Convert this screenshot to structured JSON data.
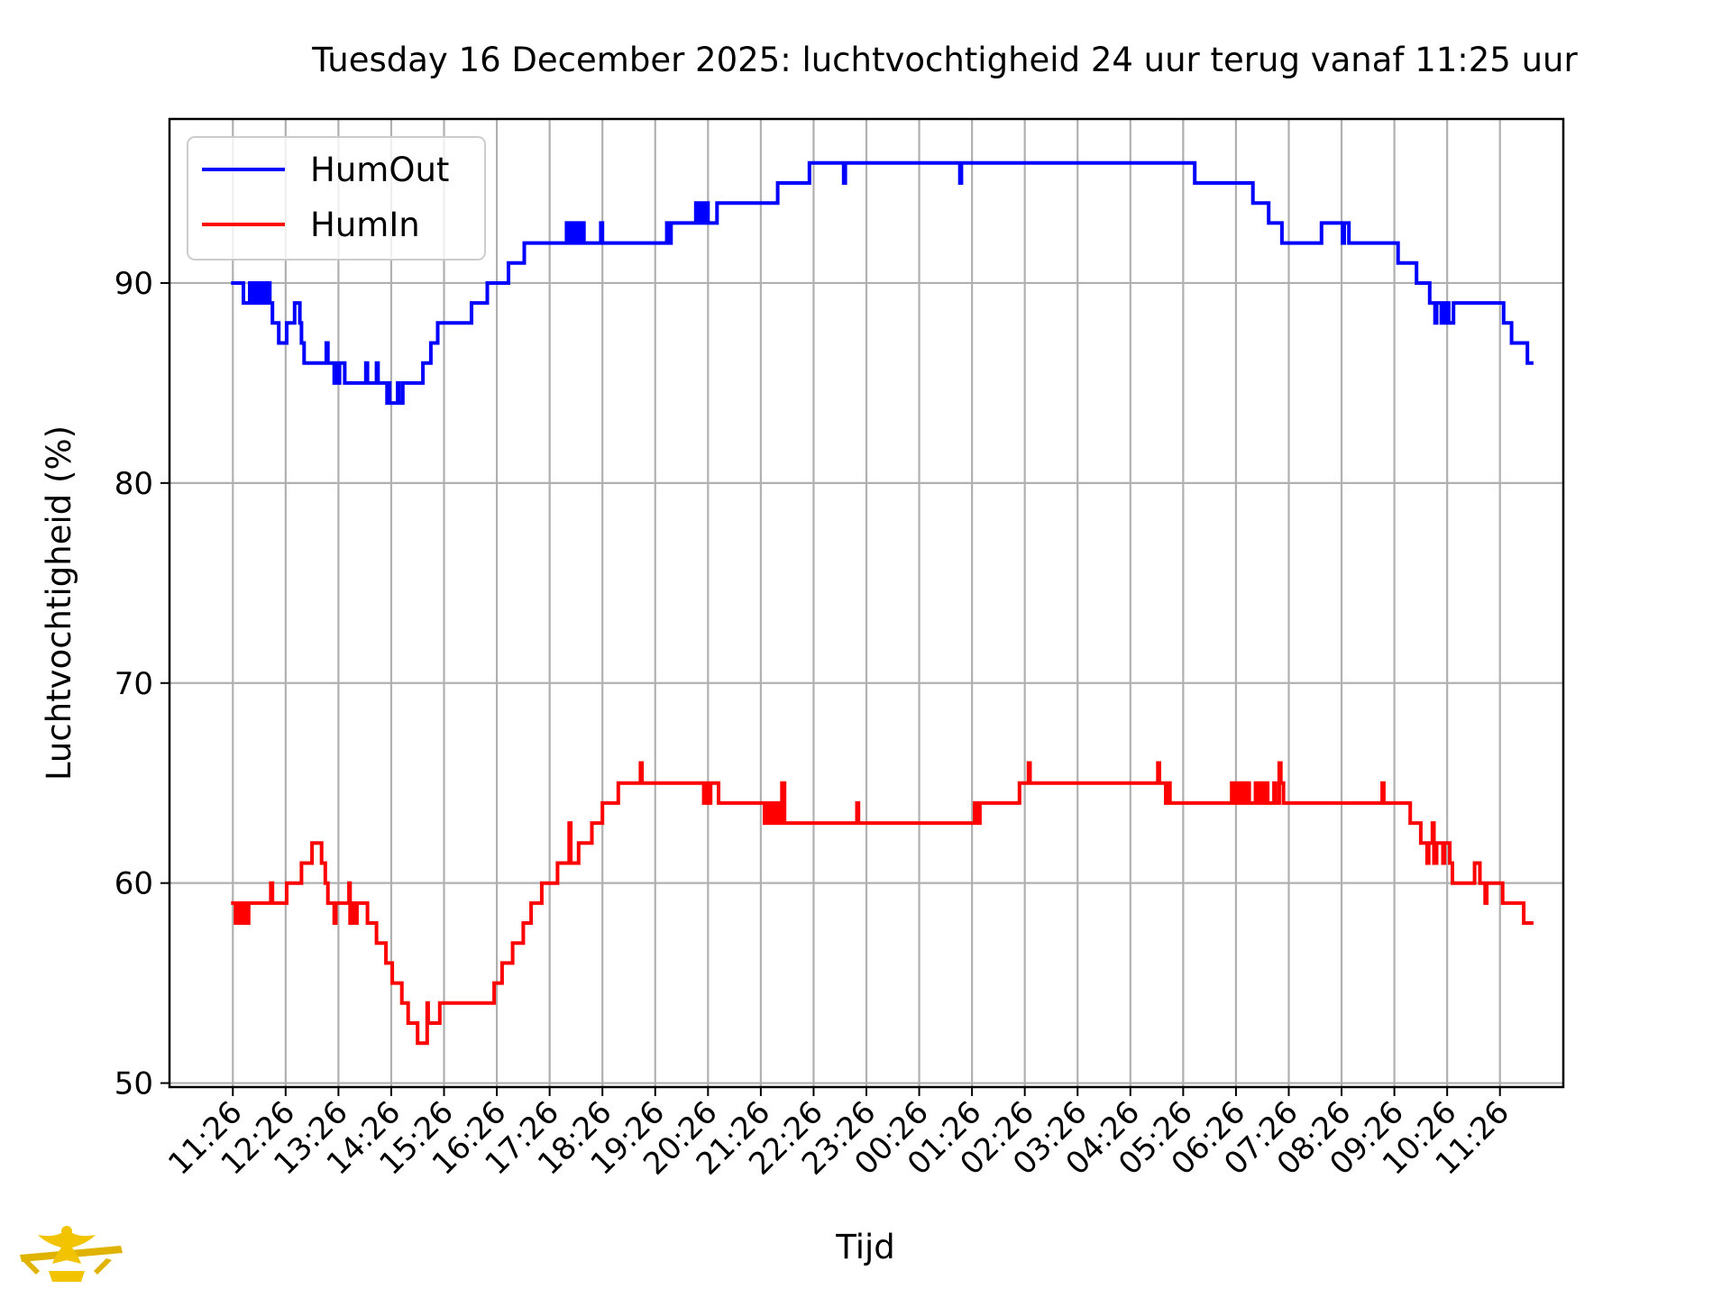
{
  "chart_data": {
    "type": "line",
    "title": "Tuesday 16 December 2025: luchtvochtigheid 24 uur terug vanaf 11:25 uur",
    "xlabel": "Tijd",
    "ylabel": "Luchtvochtigheid (%)",
    "ylim": [
      49.8,
      98.2
    ],
    "yticks": [
      50,
      60,
      70,
      80,
      90
    ],
    "xlim": [
      -1.2,
      25.2
    ],
    "xticks": [
      "11:26",
      "12:26",
      "13:26",
      "14:26",
      "15:26",
      "16:26",
      "17:26",
      "18:26",
      "19:26",
      "20:26",
      "21:26",
      "22:26",
      "23:26",
      "00:26",
      "01:26",
      "02:26",
      "03:26",
      "04:26",
      "05:26",
      "06:26",
      "07:26",
      "08:26",
      "09:26",
      "10:26",
      "11:26"
    ],
    "grid": true,
    "legend_position": "top-left",
    "series": [
      {
        "name": "HumOut",
        "color": "#0000ff",
        "points": [
          [
            0,
            90
          ],
          [
            0.15,
            90
          ],
          [
            0.2,
            89
          ],
          [
            0.3,
            89
          ],
          [
            0.32,
            90
          ],
          [
            0.36,
            89
          ],
          [
            0.4,
            89
          ],
          [
            0.42,
            90
          ],
          [
            0.46,
            89
          ],
          [
            0.5,
            89
          ],
          [
            0.52,
            90
          ],
          [
            0.56,
            89
          ],
          [
            0.58,
            90
          ],
          [
            0.62,
            89
          ],
          [
            0.66,
            90
          ],
          [
            0.7,
            89
          ],
          [
            0.75,
            88
          ],
          [
            0.85,
            88
          ],
          [
            0.87,
            87
          ],
          [
            1.0,
            87
          ],
          [
            1.02,
            88
          ],
          [
            1.15,
            88
          ],
          [
            1.17,
            89
          ],
          [
            1.25,
            89
          ],
          [
            1.27,
            88
          ],
          [
            1.3,
            87
          ],
          [
            1.35,
            86
          ],
          [
            1.75,
            86
          ],
          [
            1.77,
            87
          ],
          [
            1.8,
            86
          ],
          [
            1.9,
            86
          ],
          [
            1.92,
            85
          ],
          [
            1.95,
            86
          ],
          [
            1.97,
            85
          ],
          [
            2.0,
            85
          ],
          [
            2.02,
            86
          ],
          [
            2.1,
            86
          ],
          [
            2.12,
            85
          ],
          [
            2.5,
            85
          ],
          [
            2.52,
            86
          ],
          [
            2.55,
            85
          ],
          [
            2.7,
            85
          ],
          [
            2.72,
            86
          ],
          [
            2.75,
            85
          ],
          [
            2.9,
            85
          ],
          [
            2.92,
            84
          ],
          [
            2.95,
            85
          ],
          [
            2.97,
            84
          ],
          [
            3.1,
            84
          ],
          [
            3.12,
            85
          ],
          [
            3.15,
            84
          ],
          [
            3.2,
            84
          ],
          [
            3.22,
            85
          ],
          [
            3.55,
            85
          ],
          [
            3.6,
            86
          ],
          [
            3.7,
            86
          ],
          [
            3.75,
            87
          ],
          [
            3.85,
            87
          ],
          [
            3.88,
            88
          ],
          [
            4.5,
            88
          ],
          [
            4.52,
            89
          ],
          [
            4.8,
            89
          ],
          [
            4.82,
            90
          ],
          [
            5.2,
            90
          ],
          [
            5.22,
            91
          ],
          [
            5.5,
            91
          ],
          [
            5.52,
            92
          ],
          [
            6.3,
            92
          ],
          [
            6.32,
            93
          ],
          [
            6.35,
            92
          ],
          [
            6.4,
            93
          ],
          [
            6.45,
            92
          ],
          [
            6.5,
            93
          ],
          [
            6.55,
            92
          ],
          [
            6.6,
            93
          ],
          [
            6.65,
            92
          ],
          [
            6.95,
            92
          ],
          [
            6.97,
            93
          ],
          [
            7.0,
            92
          ],
          [
            8.2,
            92
          ],
          [
            8.22,
            93
          ],
          [
            8.25,
            92
          ],
          [
            8.3,
            93
          ],
          [
            8.75,
            93
          ],
          [
            8.77,
            94
          ],
          [
            8.8,
            93
          ],
          [
            8.85,
            94
          ],
          [
            8.9,
            93
          ],
          [
            8.95,
            94
          ],
          [
            9.0,
            93
          ],
          [
            9.15,
            93
          ],
          [
            9.17,
            94
          ],
          [
            10.3,
            94
          ],
          [
            10.32,
            95
          ],
          [
            10.9,
            95
          ],
          [
            10.92,
            96
          ],
          [
            11.55,
            96
          ],
          [
            11.57,
            95
          ],
          [
            11.6,
            96
          ],
          [
            13.75,
            96
          ],
          [
            13.77,
            95
          ],
          [
            13.8,
            96
          ],
          [
            18.2,
            96
          ],
          [
            18.22,
            95
          ],
          [
            19.3,
            95
          ],
          [
            19.32,
            94
          ],
          [
            19.6,
            94
          ],
          [
            19.62,
            93
          ],
          [
            19.85,
            93
          ],
          [
            19.87,
            92
          ],
          [
            20.6,
            92
          ],
          [
            20.62,
            93
          ],
          [
            21.0,
            93
          ],
          [
            21.02,
            92
          ],
          [
            21.05,
            93
          ],
          [
            21.12,
            93
          ],
          [
            21.14,
            92
          ],
          [
            21.25,
            92
          ],
          [
            22.05,
            92
          ],
          [
            22.07,
            91
          ],
          [
            22.4,
            91
          ],
          [
            22.42,
            90
          ],
          [
            22.65,
            90
          ],
          [
            22.67,
            89
          ],
          [
            22.75,
            89
          ],
          [
            22.77,
            88
          ],
          [
            22.8,
            89
          ],
          [
            22.87,
            89
          ],
          [
            22.89,
            88
          ],
          [
            22.92,
            89
          ],
          [
            22.97,
            88
          ],
          [
            23.0,
            89
          ],
          [
            23.03,
            88
          ],
          [
            23.1,
            88
          ],
          [
            23.12,
            89
          ],
          [
            23.45,
            89
          ],
          [
            23.5,
            89
          ],
          [
            24.05,
            89
          ],
          [
            24.07,
            88
          ],
          [
            24.2,
            88
          ],
          [
            24.22,
            87
          ],
          [
            24.5,
            87
          ],
          [
            24.52,
            86
          ],
          [
            24.6,
            86
          ]
        ]
      },
      {
        "name": "HumIn",
        "color": "#ff0000",
        "points": [
          [
            0,
            59
          ],
          [
            0.05,
            58
          ],
          [
            0.1,
            59
          ],
          [
            0.15,
            58
          ],
          [
            0.2,
            59
          ],
          [
            0.25,
            58
          ],
          [
            0.3,
            59
          ],
          [
            0.7,
            59
          ],
          [
            0.72,
            60
          ],
          [
            0.75,
            59
          ],
          [
            1.0,
            59
          ],
          [
            1.02,
            60
          ],
          [
            1.25,
            60
          ],
          [
            1.3,
            61
          ],
          [
            1.45,
            61
          ],
          [
            1.5,
            62
          ],
          [
            1.65,
            62
          ],
          [
            1.68,
            61
          ],
          [
            1.75,
            60
          ],
          [
            1.8,
            59
          ],
          [
            1.9,
            59
          ],
          [
            1.92,
            58
          ],
          [
            1.95,
            59
          ],
          [
            2.15,
            59
          ],
          [
            2.2,
            60
          ],
          [
            2.22,
            58
          ],
          [
            2.26,
            59
          ],
          [
            2.3,
            58
          ],
          [
            2.35,
            59
          ],
          [
            2.5,
            59
          ],
          [
            2.55,
            58
          ],
          [
            2.7,
            58
          ],
          [
            2.72,
            57
          ],
          [
            2.85,
            57
          ],
          [
            2.9,
            56
          ],
          [
            3.0,
            56
          ],
          [
            3.02,
            55
          ],
          [
            3.15,
            55
          ],
          [
            3.2,
            54
          ],
          [
            3.3,
            54
          ],
          [
            3.32,
            53
          ],
          [
            3.45,
            53
          ],
          [
            3.5,
            52
          ],
          [
            3.65,
            52
          ],
          [
            3.68,
            54
          ],
          [
            3.7,
            53
          ],
          [
            3.9,
            53
          ],
          [
            3.92,
            54
          ],
          [
            4.1,
            54
          ],
          [
            4.15,
            54
          ],
          [
            4.9,
            54
          ],
          [
            4.95,
            55
          ],
          [
            5.05,
            55
          ],
          [
            5.1,
            56
          ],
          [
            5.25,
            56
          ],
          [
            5.3,
            57
          ],
          [
            5.45,
            57
          ],
          [
            5.5,
            58
          ],
          [
            5.6,
            58
          ],
          [
            5.65,
            59
          ],
          [
            5.8,
            59
          ],
          [
            5.85,
            60
          ],
          [
            6.1,
            60
          ],
          [
            6.15,
            61
          ],
          [
            6.35,
            61
          ],
          [
            6.37,
            63
          ],
          [
            6.4,
            61
          ],
          [
            6.5,
            61
          ],
          [
            6.55,
            62
          ],
          [
            6.75,
            62
          ],
          [
            6.8,
            63
          ],
          [
            6.95,
            63
          ],
          [
            7.0,
            64
          ],
          [
            7.25,
            64
          ],
          [
            7.3,
            65
          ],
          [
            7.7,
            65
          ],
          [
            7.72,
            66
          ],
          [
            7.75,
            65
          ],
          [
            8.9,
            65
          ],
          [
            8.92,
            64
          ],
          [
            8.95,
            65
          ],
          [
            9.0,
            64
          ],
          [
            9.05,
            65
          ],
          [
            9.15,
            65
          ],
          [
            9.2,
            64
          ],
          [
            10.05,
            64
          ],
          [
            10.07,
            63
          ],
          [
            10.1,
            64
          ],
          [
            10.15,
            63
          ],
          [
            10.2,
            64
          ],
          [
            10.25,
            63
          ],
          [
            10.3,
            64
          ],
          [
            10.35,
            63
          ],
          [
            10.4,
            65
          ],
          [
            10.45,
            63
          ],
          [
            11.8,
            63
          ],
          [
            11.82,
            64
          ],
          [
            11.85,
            63
          ],
          [
            14.0,
            63
          ],
          [
            14.05,
            64
          ],
          [
            14.1,
            63
          ],
          [
            14.15,
            64
          ],
          [
            14.85,
            64
          ],
          [
            14.9,
            65
          ],
          [
            15.05,
            65
          ],
          [
            15.07,
            66
          ],
          [
            15.1,
            65
          ],
          [
            17.5,
            65
          ],
          [
            17.52,
            66
          ],
          [
            17.55,
            65
          ],
          [
            17.65,
            65
          ],
          [
            17.67,
            64
          ],
          [
            17.7,
            65
          ],
          [
            17.75,
            64
          ],
          [
            18.15,
            64
          ],
          [
            18.9,
            64
          ],
          [
            18.92,
            65
          ],
          [
            18.95,
            64
          ],
          [
            19.0,
            65
          ],
          [
            19.05,
            64
          ],
          [
            19.1,
            65
          ],
          [
            19.15,
            64
          ],
          [
            19.2,
            65
          ],
          [
            19.25,
            64
          ],
          [
            19.35,
            64
          ],
          [
            19.37,
            65
          ],
          [
            19.4,
            64
          ],
          [
            19.45,
            65
          ],
          [
            19.5,
            64
          ],
          [
            19.55,
            65
          ],
          [
            19.6,
            64
          ],
          [
            19.7,
            64
          ],
          [
            19.72,
            65
          ],
          [
            19.75,
            64
          ],
          [
            19.8,
            64
          ],
          [
            19.82,
            66
          ],
          [
            19.85,
            65
          ],
          [
            19.9,
            64
          ],
          [
            21.75,
            64
          ],
          [
            21.77,
            65
          ],
          [
            21.8,
            64
          ],
          [
            22.25,
            64
          ],
          [
            22.3,
            63
          ],
          [
            22.45,
            63
          ],
          [
            22.5,
            62
          ],
          [
            22.6,
            62
          ],
          [
            22.62,
            61
          ],
          [
            22.65,
            62
          ],
          [
            22.7,
            62
          ],
          [
            22.72,
            63
          ],
          [
            22.75,
            61
          ],
          [
            22.8,
            62
          ],
          [
            22.9,
            62
          ],
          [
            22.92,
            61
          ],
          [
            22.95,
            62
          ],
          [
            23.05,
            61
          ],
          [
            23.1,
            60
          ],
          [
            23.5,
            60
          ],
          [
            23.52,
            61
          ],
          [
            23.6,
            61
          ],
          [
            23.62,
            60
          ],
          [
            23.7,
            60
          ],
          [
            23.72,
            59
          ],
          [
            23.75,
            60
          ],
          [
            24.0,
            60
          ],
          [
            24.05,
            59
          ],
          [
            24.4,
            59
          ],
          [
            24.45,
            58
          ],
          [
            24.6,
            58
          ]
        ]
      }
    ]
  }
}
